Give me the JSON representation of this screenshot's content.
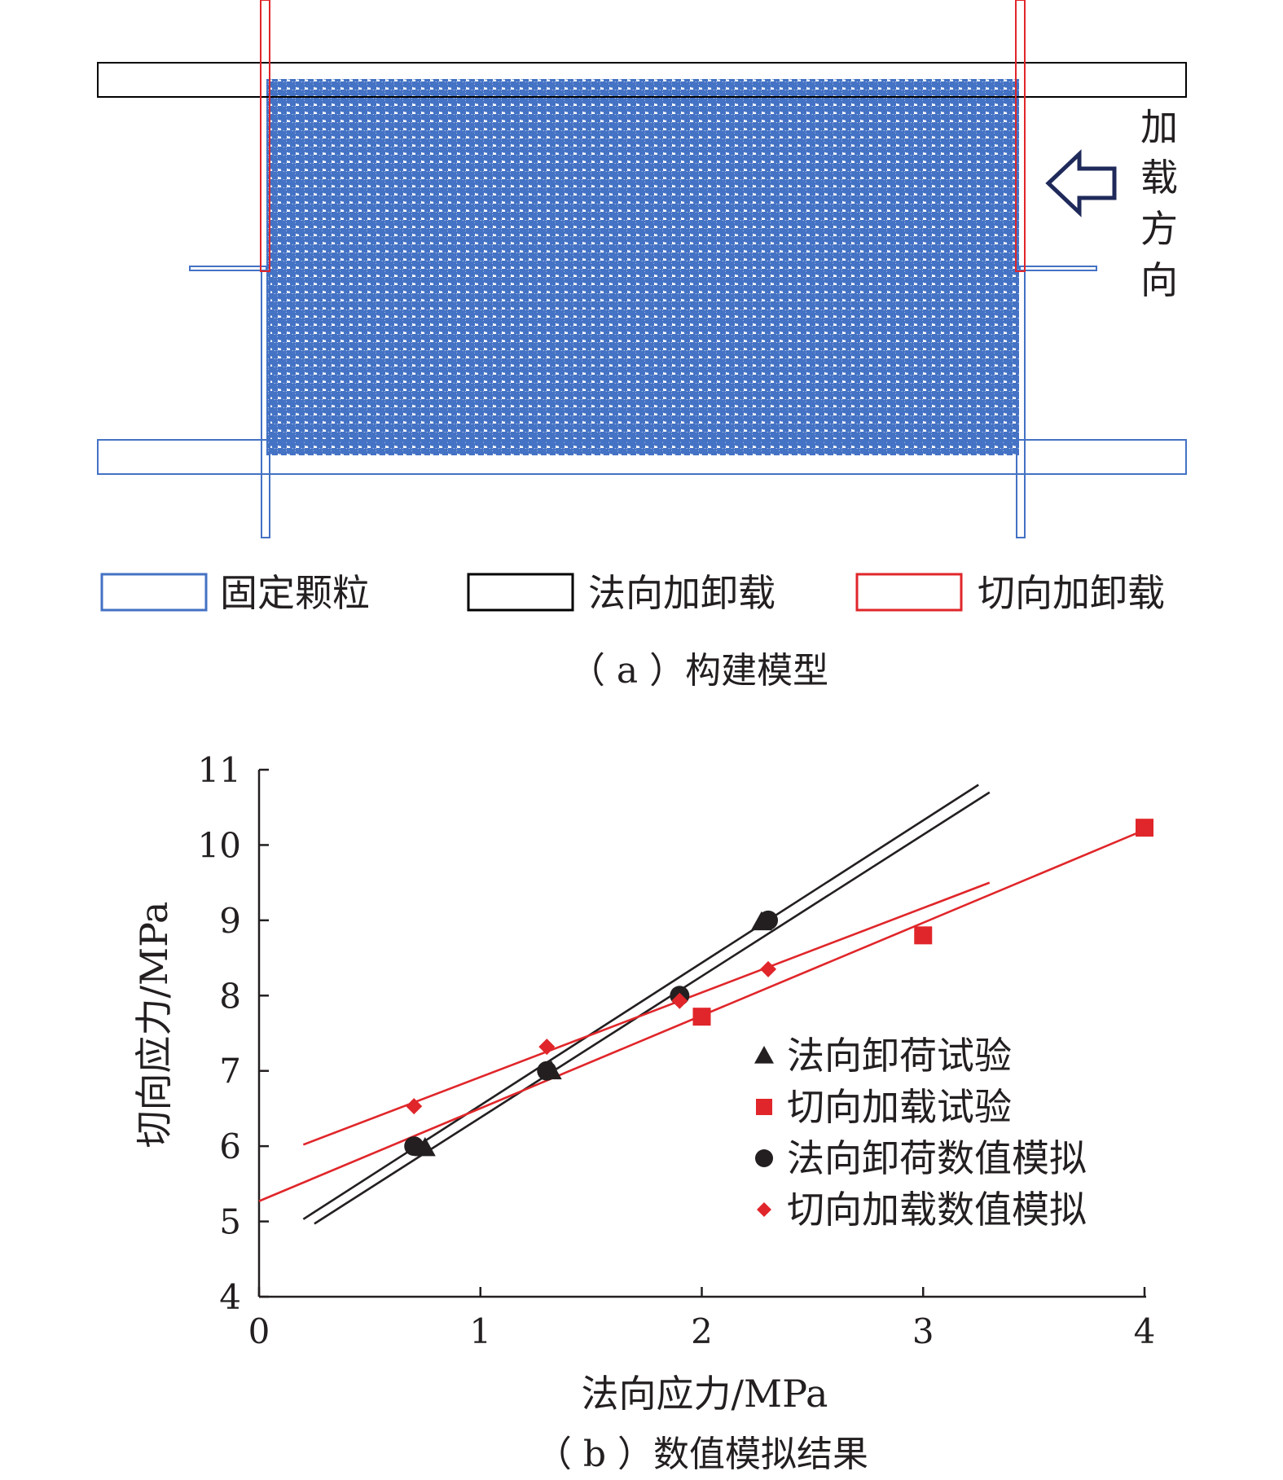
{
  "panel_a": {
    "arrow_label": [
      "加",
      "载",
      "方",
      "向"
    ],
    "legend": [
      {
        "label": "固定颗粒",
        "color": "#4472c4"
      },
      {
        "label": "法向加卸载",
        "color": "#000000"
      },
      {
        "label": "切向加卸载",
        "color": "#e0262a"
      }
    ],
    "caption": "（ a ）构建模型",
    "particle_color": "#4472c4"
  },
  "chart_data": {
    "type": "scatter",
    "caption": "（ b ）数值模拟结果",
    "xlabel": "法向应力/MPa",
    "ylabel": "切向应力/MPa",
    "xlim": [
      0,
      4
    ],
    "ylim": [
      4,
      11
    ],
    "xticks": [
      "0",
      "1",
      "2",
      "3",
      "4"
    ],
    "yticks": [
      "4",
      "5",
      "6",
      "7",
      "8",
      "9",
      "10",
      "11"
    ],
    "legend_position": "right",
    "series": [
      {
        "name": "法向卸荷试验",
        "marker": "triangle",
        "color": "#231f20",
        "points": [
          [
            0.75,
            5.98
          ],
          [
            1.32,
            7.0
          ],
          [
            2.27,
            8.98
          ]
        ]
      },
      {
        "name": "切向加载试验",
        "marker": "square",
        "color": "#e0262a",
        "points": [
          [
            2.0,
            7.72
          ],
          [
            3.0,
            8.8
          ],
          [
            4.0,
            10.23
          ]
        ]
      },
      {
        "name": "法向卸荷数值模拟",
        "marker": "circle",
        "color": "#231f20",
        "points": [
          [
            0.7,
            6.0
          ],
          [
            1.3,
            7.0
          ],
          [
            1.9,
            8.0
          ],
          [
            2.3,
            9.0
          ]
        ]
      },
      {
        "name": "切向加载数值模拟",
        "marker": "diamond",
        "color": "#e0262a",
        "points": [
          [
            0.7,
            6.53
          ],
          [
            1.3,
            7.32
          ],
          [
            1.9,
            7.93
          ],
          [
            2.3,
            8.35
          ]
        ]
      }
    ],
    "trendlines": [
      {
        "color": "#231f20",
        "from": [
          0.2,
          5.03
        ],
        "to": [
          3.25,
          10.8
        ]
      },
      {
        "color": "#231f20",
        "from": [
          0.25,
          4.97
        ],
        "to": [
          3.3,
          10.7
        ]
      },
      {
        "color": "#e0262a",
        "from": [
          0.0,
          5.27
        ],
        "to": [
          4.0,
          10.2
        ]
      },
      {
        "color": "#e0262a",
        "from": [
          0.2,
          6.02
        ],
        "to": [
          3.3,
          9.5
        ]
      }
    ]
  }
}
